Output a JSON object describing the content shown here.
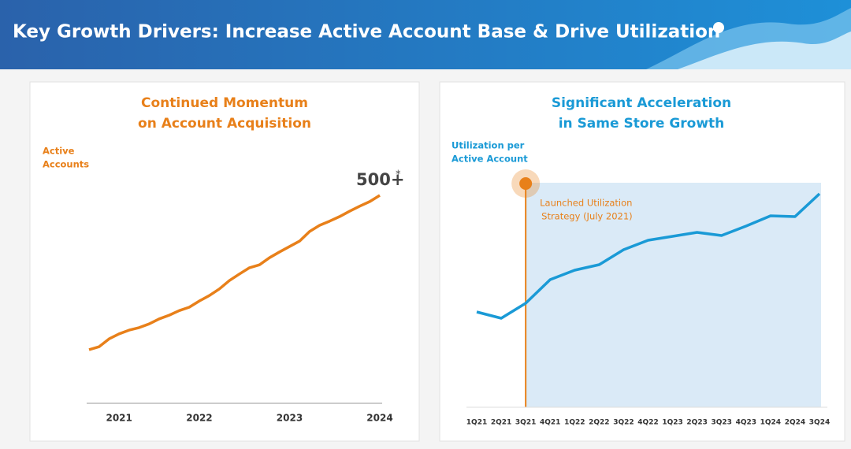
{
  "header": {
    "title": "Key Growth Drivers: Increase Active Account Base & Drive Utilization"
  },
  "chart_data": [
    {
      "type": "line",
      "title": [
        "Continued Momentum",
        "on Account Acquisition"
      ],
      "y_label": [
        "Active",
        "Accounts"
      ],
      "color": "#e8801a",
      "categories": [
        null,
        null,
        null,
        "2021",
        null,
        null,
        null,
        null,
        null,
        null,
        null,
        "2022",
        null,
        null,
        null,
        null,
        null,
        null,
        null,
        null,
        "2023",
        null,
        null,
        null,
        null,
        null,
        null,
        null,
        null,
        "2024"
      ],
      "values": [
        129,
        136,
        155,
        167,
        176,
        182,
        191,
        203,
        212,
        223,
        231,
        246,
        259,
        275,
        295,
        311,
        326,
        333,
        350,
        364,
        377,
        390,
        413,
        428,
        438,
        449,
        462,
        474,
        485,
        500
      ],
      "end_label": "500+",
      "end_label_note": "*"
    },
    {
      "type": "line",
      "title": [
        "Significant Acceleration",
        "in Same Store Growth"
      ],
      "y_label": [
        "Utilization per",
        "Active Account"
      ],
      "color": "#1a9ad6",
      "categories": [
        "1Q21",
        "2Q21",
        "3Q21",
        "4Q21",
        "1Q22",
        "2Q22",
        "3Q22",
        "4Q22",
        "1Q23",
        "2Q23",
        "3Q23",
        "4Q23",
        "1Q24",
        "2Q24",
        "3Q24"
      ],
      "values": [
        121,
        113,
        132,
        162,
        174,
        181,
        200,
        212,
        217,
        222,
        218,
        230,
        243,
        242,
        271
      ],
      "event_category": "3Q21",
      "event_color": "#e8801a",
      "highlight_color": "#daeaf7",
      "annotation": [
        "Launched Utilization",
        "Strategy (July 2021)"
      ]
    }
  ]
}
